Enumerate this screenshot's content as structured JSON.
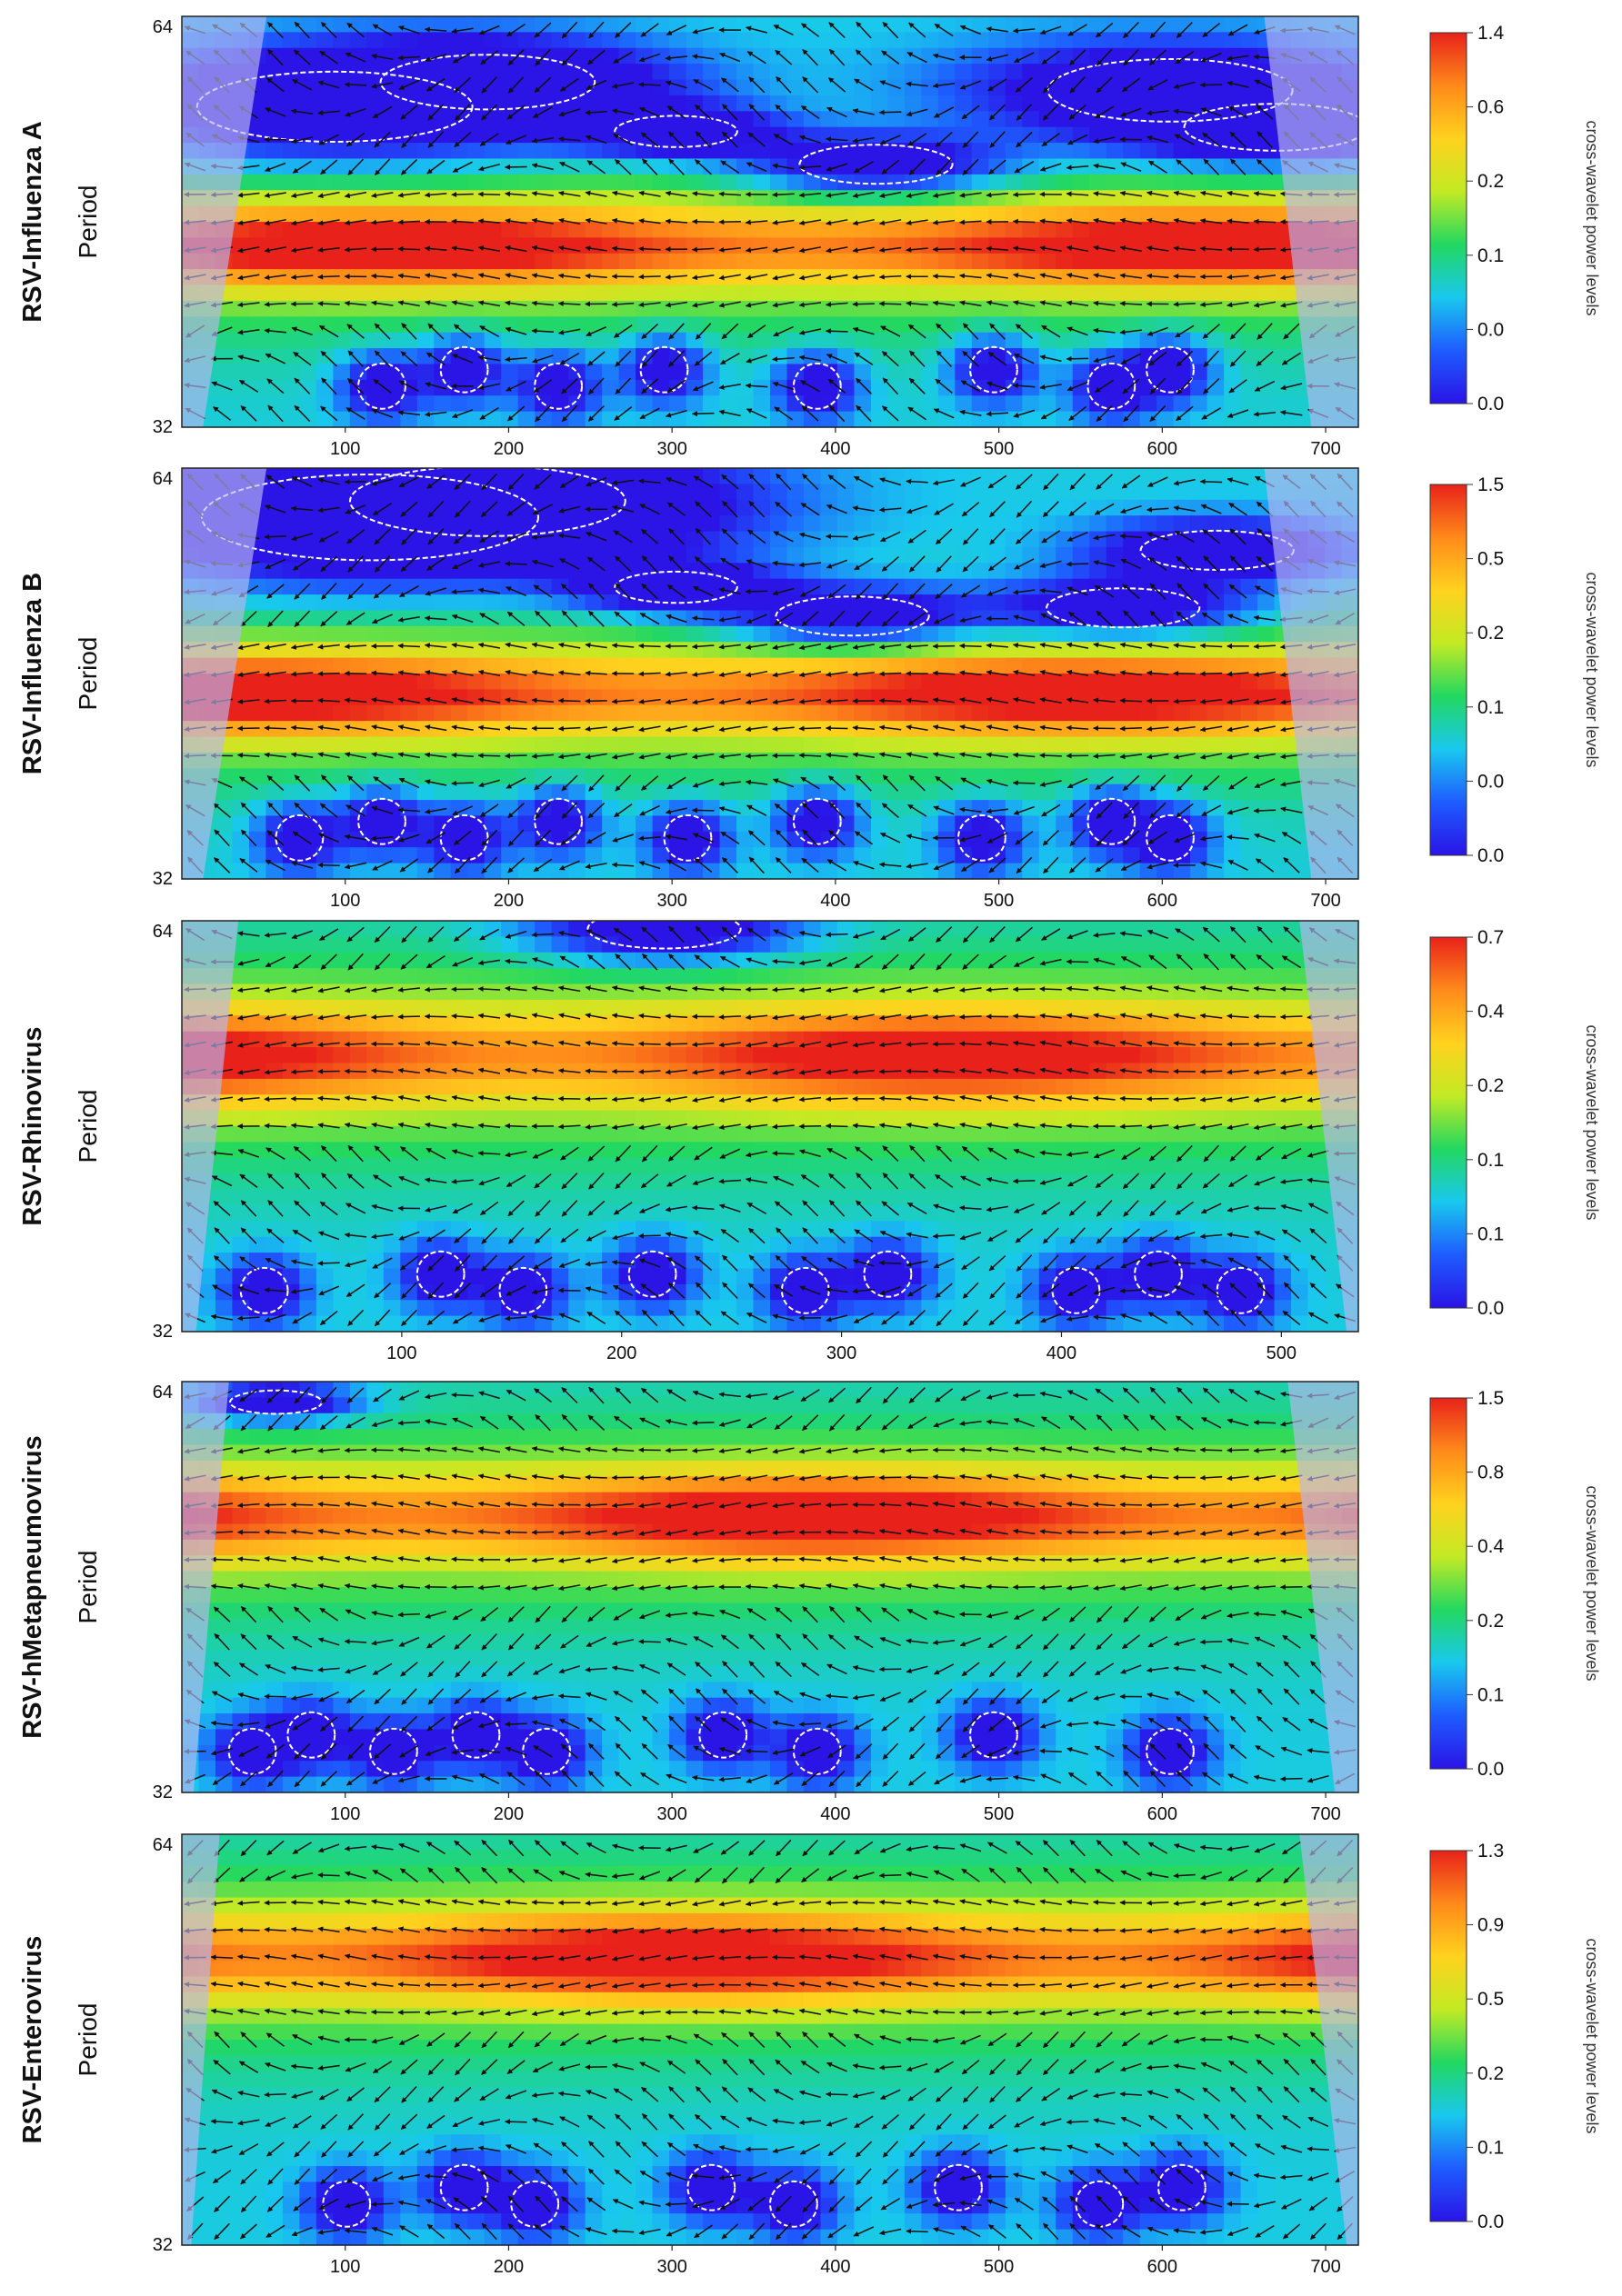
{
  "figure": {
    "y_label": "Period",
    "colorbar_label": "cross-wavelet power levels"
  },
  "chart_data": [
    {
      "type": "heatmap",
      "title": "RSV-Influenza A",
      "ylabel": "Period",
      "y_ticks": [
        "64",
        "32"
      ],
      "x_ticks": [
        "100",
        "200",
        "300",
        "400",
        "500",
        "600",
        "700"
      ],
      "xlim": [
        0,
        720
      ],
      "colorbar_ticks": [
        "1.4",
        "0.6",
        "0.2",
        "0.1",
        "0.0",
        "0.0"
      ],
      "colorbar_label": "cross-wavelet power levels",
      "high_power_band_period": "between 32 and 64",
      "grid": false
    },
    {
      "type": "heatmap",
      "title": "RSV-Influenza B",
      "ylabel": "Period",
      "y_ticks": [
        "64",
        "32"
      ],
      "x_ticks": [
        "100",
        "200",
        "300",
        "400",
        "500",
        "600",
        "700"
      ],
      "xlim": [
        0,
        720
      ],
      "colorbar_ticks": [
        "1.5",
        "0.5",
        "0.2",
        "0.1",
        "0.0",
        "0.0"
      ],
      "colorbar_label": "cross-wavelet power levels",
      "grid": false
    },
    {
      "type": "heatmap",
      "title": "RSV-Rhinovirus",
      "ylabel": "Period",
      "y_ticks": [
        "64",
        "32"
      ],
      "x_ticks": [
        "100",
        "200",
        "300",
        "400",
        "500"
      ],
      "xlim": [
        0,
        535
      ],
      "colorbar_ticks": [
        "0.7",
        "0.4",
        "0.2",
        "0.1",
        "0.1",
        "0.0"
      ],
      "colorbar_label": "cross-wavelet power levels",
      "grid": false
    },
    {
      "type": "heatmap",
      "title": "RSV-hMetapneumovirus",
      "ylabel": "Period",
      "y_ticks": [
        "64",
        "32"
      ],
      "x_ticks": [
        "100",
        "200",
        "300",
        "400",
        "500",
        "600",
        "700"
      ],
      "xlim": [
        0,
        720
      ],
      "colorbar_ticks": [
        "1.5",
        "0.8",
        "0.4",
        "0.2",
        "0.1",
        "0.0"
      ],
      "colorbar_label": "cross-wavelet power levels",
      "grid": false
    },
    {
      "type": "heatmap",
      "title": "RSV-Enterovirus",
      "ylabel": "Period",
      "y_ticks": [
        "64",
        "32"
      ],
      "x_ticks": [
        "100",
        "200",
        "300",
        "400",
        "500",
        "600",
        "700"
      ],
      "xlim": [
        0,
        720
      ],
      "colorbar_ticks": [
        "1.3",
        "0.9",
        "0.5",
        "0.2",
        "0.1",
        "0.0"
      ],
      "colorbar_label": "cross-wavelet power levels",
      "grid": false
    }
  ],
  "colors": {
    "colormap": [
      "#2a14e6",
      "#1e5cff",
      "#19c8ee",
      "#22d860",
      "#c2ea24",
      "#ffd21e",
      "#ff8a1a",
      "#e8221a"
    ],
    "arrow": "#111111",
    "contour": "#ffffff",
    "cone_shade": "#b9b7f0"
  }
}
